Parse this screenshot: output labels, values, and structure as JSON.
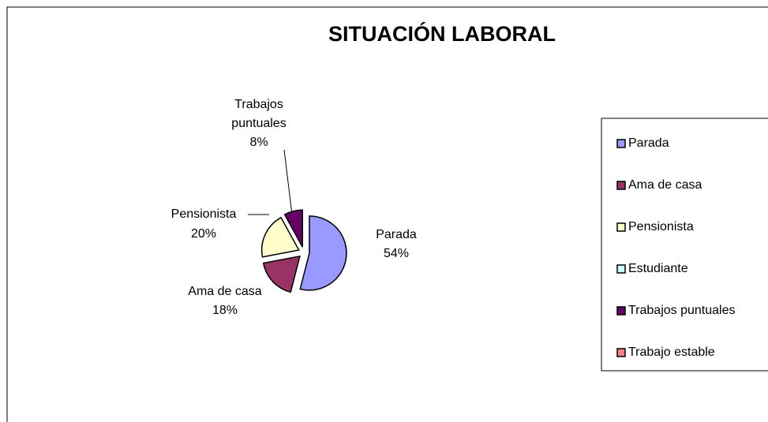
{
  "chart_data": {
    "type": "pie",
    "title": "SITUACIÓN LABORAL",
    "categories": [
      "Parada",
      "Ama de casa",
      "Pensionista",
      "Estudiante",
      "Trabajos puntuales",
      "Trabajo estable"
    ],
    "values": [
      54,
      18,
      20,
      0,
      8,
      0
    ],
    "value_labels": [
      "54%",
      "18%",
      "20%",
      null,
      "8%",
      null
    ],
    "colors": [
      "#9999ff",
      "#993366",
      "#ffffcc",
      "#ccffff",
      "#660066",
      "#ff8080"
    ],
    "legend": "right"
  }
}
